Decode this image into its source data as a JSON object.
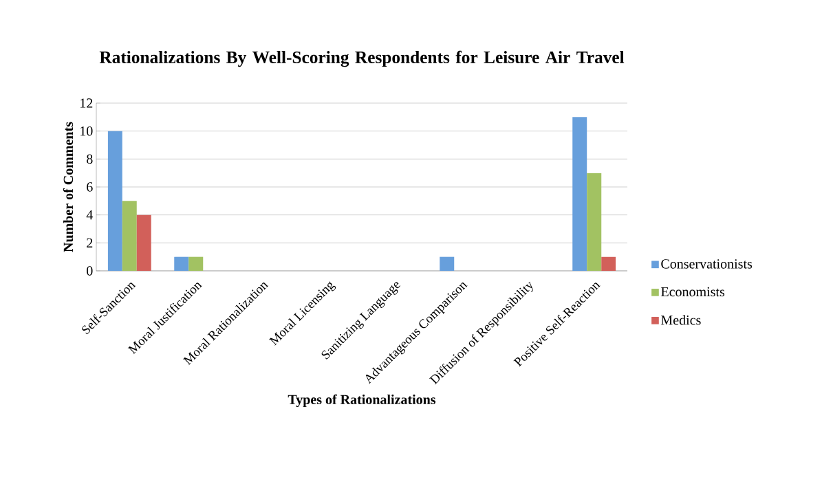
{
  "chart_data": {
    "type": "bar",
    "title": "Rationalizations By Well-Scoring Respondents for Leisure Air Travel",
    "xlabel": "Types of Rationalizations",
    "ylabel": "Number of Comments",
    "categories": [
      "Self-Sanction",
      "Moral Justification",
      "Moral Rationalization",
      "Moral Licensing",
      "Sanitizing Language",
      "Advantageous Comparison",
      "Diffusion of Responsibility",
      "Positive Self-Reaction"
    ],
    "series": [
      {
        "name": "Conservationists",
        "color": "#679fdc",
        "values": [
          10,
          1,
          0,
          0,
          0,
          1,
          0,
          11
        ]
      },
      {
        "name": "Economists",
        "color": "#a2c262",
        "values": [
          5,
          1,
          0,
          0,
          0,
          0,
          0,
          7
        ]
      },
      {
        "name": "Medics",
        "color": "#d2605a",
        "values": [
          4,
          0,
          0,
          0,
          0,
          0,
          0,
          1
        ]
      }
    ],
    "ylim": [
      0,
      12
    ],
    "yticks": [
      0,
      2,
      4,
      6,
      8,
      10,
      12
    ],
    "grid": "y",
    "legend": "right"
  }
}
